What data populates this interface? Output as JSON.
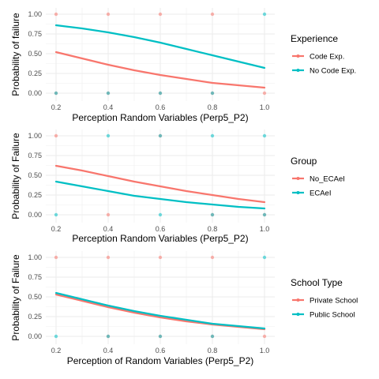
{
  "chart_data": [
    {
      "type": "line",
      "xlabel": "Perception Random Variables (Perp5_P2)",
      "ylabel": "Probability of failure",
      "xlim": [
        0.2,
        1.0
      ],
      "ylim": [
        0,
        1
      ],
      "x_ticks": [
        "0.2",
        "0.4",
        "0.6",
        "0.8",
        "1.0"
      ],
      "y_ticks": [
        "0.00",
        "0.25",
        "0.50",
        "0.75",
        "1.00"
      ],
      "grid": true,
      "legend": {
        "title": "Experience",
        "position": "right"
      },
      "series": [
        {
          "name": "Code Exp.",
          "color": "#F8766D",
          "x": [
            0.2,
            0.3,
            0.4,
            0.5,
            0.6,
            0.7,
            0.8,
            0.9,
            1.0
          ],
          "values": [
            0.52,
            0.44,
            0.36,
            0.29,
            0.23,
            0.18,
            0.13,
            0.1,
            0.07
          ],
          "points": [
            [
              0.2,
              0
            ],
            [
              0.2,
              1
            ],
            [
              0.4,
              0
            ],
            [
              0.4,
              1
            ],
            [
              0.6,
              0
            ],
            [
              0.6,
              1
            ],
            [
              0.8,
              0
            ],
            [
              0.8,
              1
            ],
            [
              1.0,
              0
            ]
          ]
        },
        {
          "name": "No Code Exp.",
          "color": "#00BFC4",
          "x": [
            0.2,
            0.3,
            0.4,
            0.5,
            0.6,
            0.7,
            0.8,
            0.9,
            1.0
          ],
          "values": [
            0.86,
            0.82,
            0.77,
            0.71,
            0.64,
            0.56,
            0.48,
            0.4,
            0.32
          ],
          "points": [
            [
              0.2,
              0
            ],
            [
              0.4,
              0
            ],
            [
              0.6,
              0
            ],
            [
              0.8,
              0
            ],
            [
              1.0,
              1
            ]
          ]
        }
      ]
    },
    {
      "type": "line",
      "xlabel": "Perception Random Variables (Perp5_P2)",
      "ylabel": "Probability of Failure",
      "xlim": [
        0.2,
        1.0
      ],
      "ylim": [
        0,
        1
      ],
      "x_ticks": [
        "0.2",
        "0.4",
        "0.6",
        "0.8",
        "1.0"
      ],
      "y_ticks": [
        "0.00",
        "0.25",
        "0.50",
        "0.75",
        "1.00"
      ],
      "grid": true,
      "legend": {
        "title": "Group",
        "position": "right"
      },
      "series": [
        {
          "name": "No_ECAeI",
          "color": "#F8766D",
          "x": [
            0.2,
            0.3,
            0.4,
            0.5,
            0.6,
            0.7,
            0.8,
            0.9,
            1.0
          ],
          "values": [
            0.62,
            0.56,
            0.49,
            0.42,
            0.36,
            0.3,
            0.25,
            0.2,
            0.16
          ],
          "points": [
            [
              0.2,
              1
            ],
            [
              0.4,
              0
            ],
            [
              0.6,
              1
            ],
            [
              0.8,
              0
            ],
            [
              1.0,
              0
            ]
          ]
        },
        {
          "name": "ECAeI",
          "color": "#00BFC4",
          "x": [
            0.2,
            0.3,
            0.4,
            0.5,
            0.6,
            0.7,
            0.8,
            0.9,
            1.0
          ],
          "values": [
            0.42,
            0.36,
            0.3,
            0.24,
            0.2,
            0.16,
            0.13,
            0.1,
            0.08
          ],
          "points": [
            [
              0.2,
              0
            ],
            [
              0.4,
              1
            ],
            [
              0.6,
              1
            ],
            [
              0.6,
              0
            ],
            [
              0.8,
              0
            ],
            [
              0.8,
              1
            ],
            [
              1.0,
              0
            ],
            [
              1.0,
              1
            ]
          ]
        }
      ]
    },
    {
      "type": "line",
      "xlabel": "Perception of Random Variables (Perp5_P2)",
      "ylabel": "Probability of Failure",
      "xlim": [
        0.2,
        1.0
      ],
      "ylim": [
        0,
        1
      ],
      "x_ticks": [
        "0.2",
        "0.4",
        "0.6",
        "0.8",
        "1.0"
      ],
      "y_ticks": [
        "0.00",
        "0.25",
        "0.50",
        "0.75",
        "1.00"
      ],
      "grid": true,
      "legend": {
        "title": "School Type",
        "position": "right"
      },
      "series": [
        {
          "name": "Private School",
          "color": "#F8766D",
          "x": [
            0.2,
            0.3,
            0.4,
            0.5,
            0.6,
            0.7,
            0.8,
            0.9,
            1.0
          ],
          "values": [
            0.53,
            0.45,
            0.37,
            0.3,
            0.24,
            0.19,
            0.15,
            0.12,
            0.09
          ],
          "points": [
            [
              0.2,
              1
            ],
            [
              0.4,
              1
            ],
            [
              0.4,
              0
            ],
            [
              0.6,
              1
            ],
            [
              0.6,
              0
            ],
            [
              0.8,
              1
            ],
            [
              0.8,
              0
            ],
            [
              1.0,
              0
            ]
          ]
        },
        {
          "name": "Public School",
          "color": "#00BFC4",
          "x": [
            0.2,
            0.3,
            0.4,
            0.5,
            0.6,
            0.7,
            0.8,
            0.9,
            1.0
          ],
          "values": [
            0.55,
            0.47,
            0.39,
            0.32,
            0.26,
            0.21,
            0.16,
            0.13,
            0.1
          ],
          "points": [
            [
              0.2,
              0
            ],
            [
              0.4,
              0
            ],
            [
              0.6,
              0
            ],
            [
              0.8,
              0
            ],
            [
              1.0,
              1
            ]
          ]
        }
      ]
    }
  ]
}
